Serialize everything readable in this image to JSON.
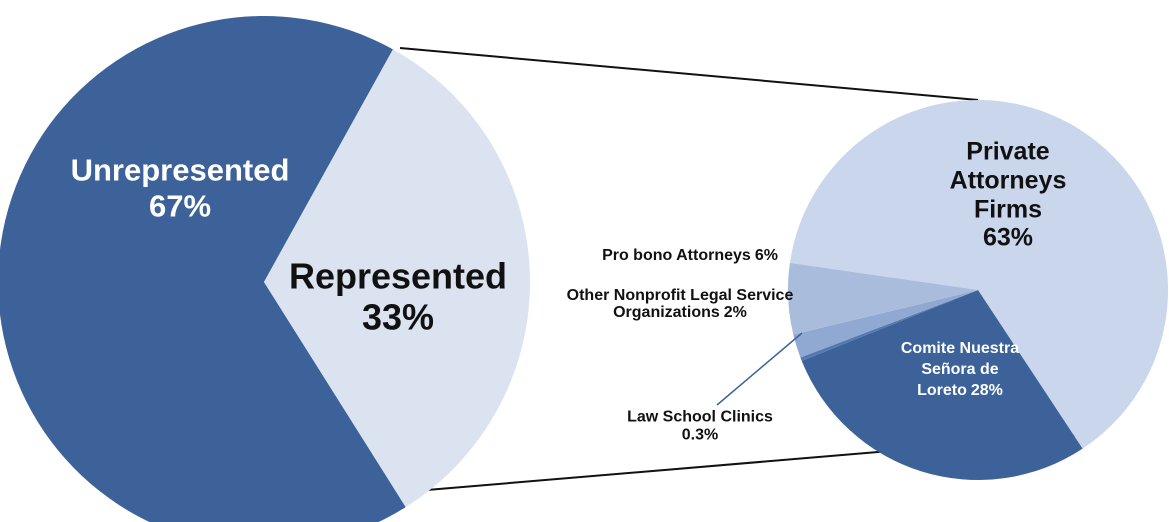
{
  "chart_data": [
    {
      "type": "pie",
      "categories": [
        "Unrepresented",
        "Represented"
      ],
      "values": [
        67,
        33
      ],
      "value_labels": [
        "67%",
        "33%"
      ],
      "colors": [
        "#3c6299",
        "#dbe3f1"
      ]
    },
    {
      "type": "pie",
      "categories": [
        "Private Attorneys Firms",
        "Comite Nuestra Señora de Loreto",
        "Law School Clinics",
        "Other Nonprofit Legal Service Organizations",
        "Pro bono Attorneys"
      ],
      "values": [
        63,
        28,
        0.3,
        2,
        6
      ],
      "value_labels": [
        "63%",
        "28%",
        "0.3%",
        "2%",
        "6%"
      ],
      "colors": [
        "#c9d6eb",
        "#3c6299",
        "#5479b0",
        "#8fa9d2",
        "#a9bcdc"
      ]
    }
  ]
}
